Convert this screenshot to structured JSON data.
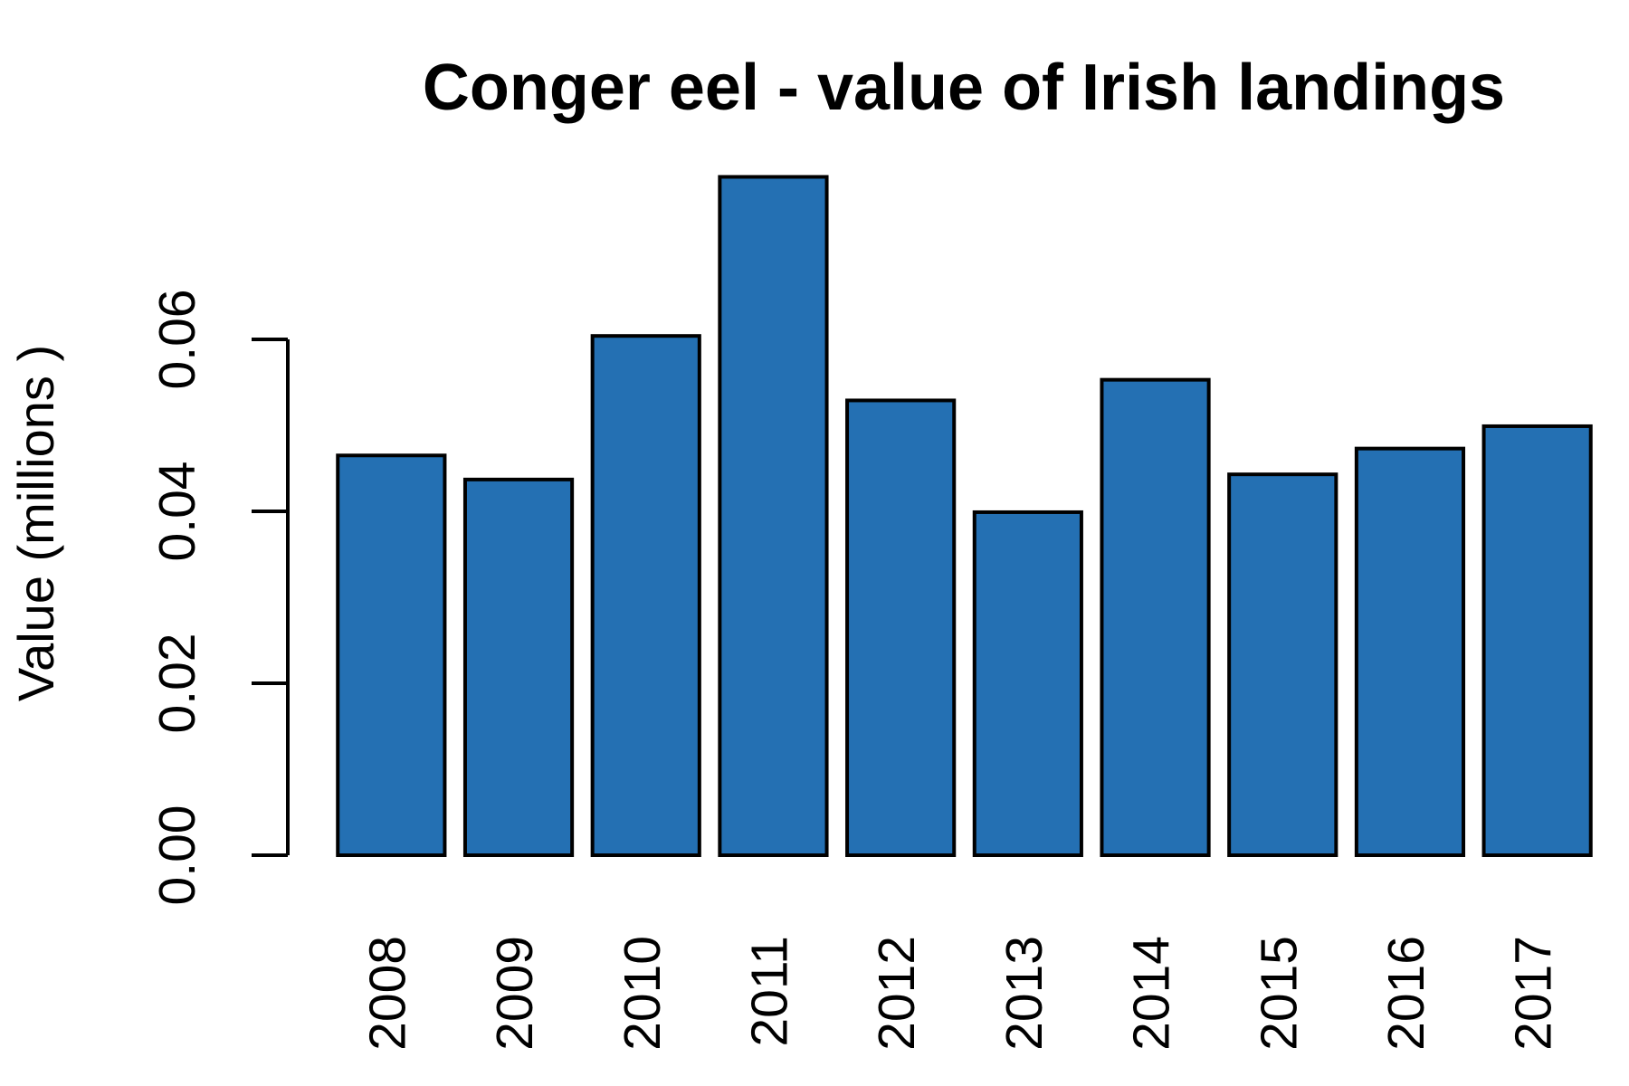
{
  "chart_data": {
    "type": "bar",
    "title": "Conger eel - value of Irish landings",
    "y_label": "Value (millions )",
    "categories": [
      "2008",
      "2009",
      "2010",
      "2011",
      "2012",
      "2013",
      "2014",
      "2015",
      "2016",
      "2017"
    ],
    "values": [
      0.0465,
      0.0437,
      0.0604,
      0.0789,
      0.0529,
      0.0399,
      0.0553,
      0.0443,
      0.0473,
      0.0499
    ],
    "color": "#2470b3",
    "ylim": [
      0,
      0.08
    ],
    "yticks": [
      {
        "value": 0,
        "label": "0.00"
      },
      {
        "value": 0.02,
        "label": "0.02"
      },
      {
        "value": 0.04,
        "label": "0.04"
      },
      {
        "value": 0.06,
        "label": "0.06"
      }
    ]
  }
}
